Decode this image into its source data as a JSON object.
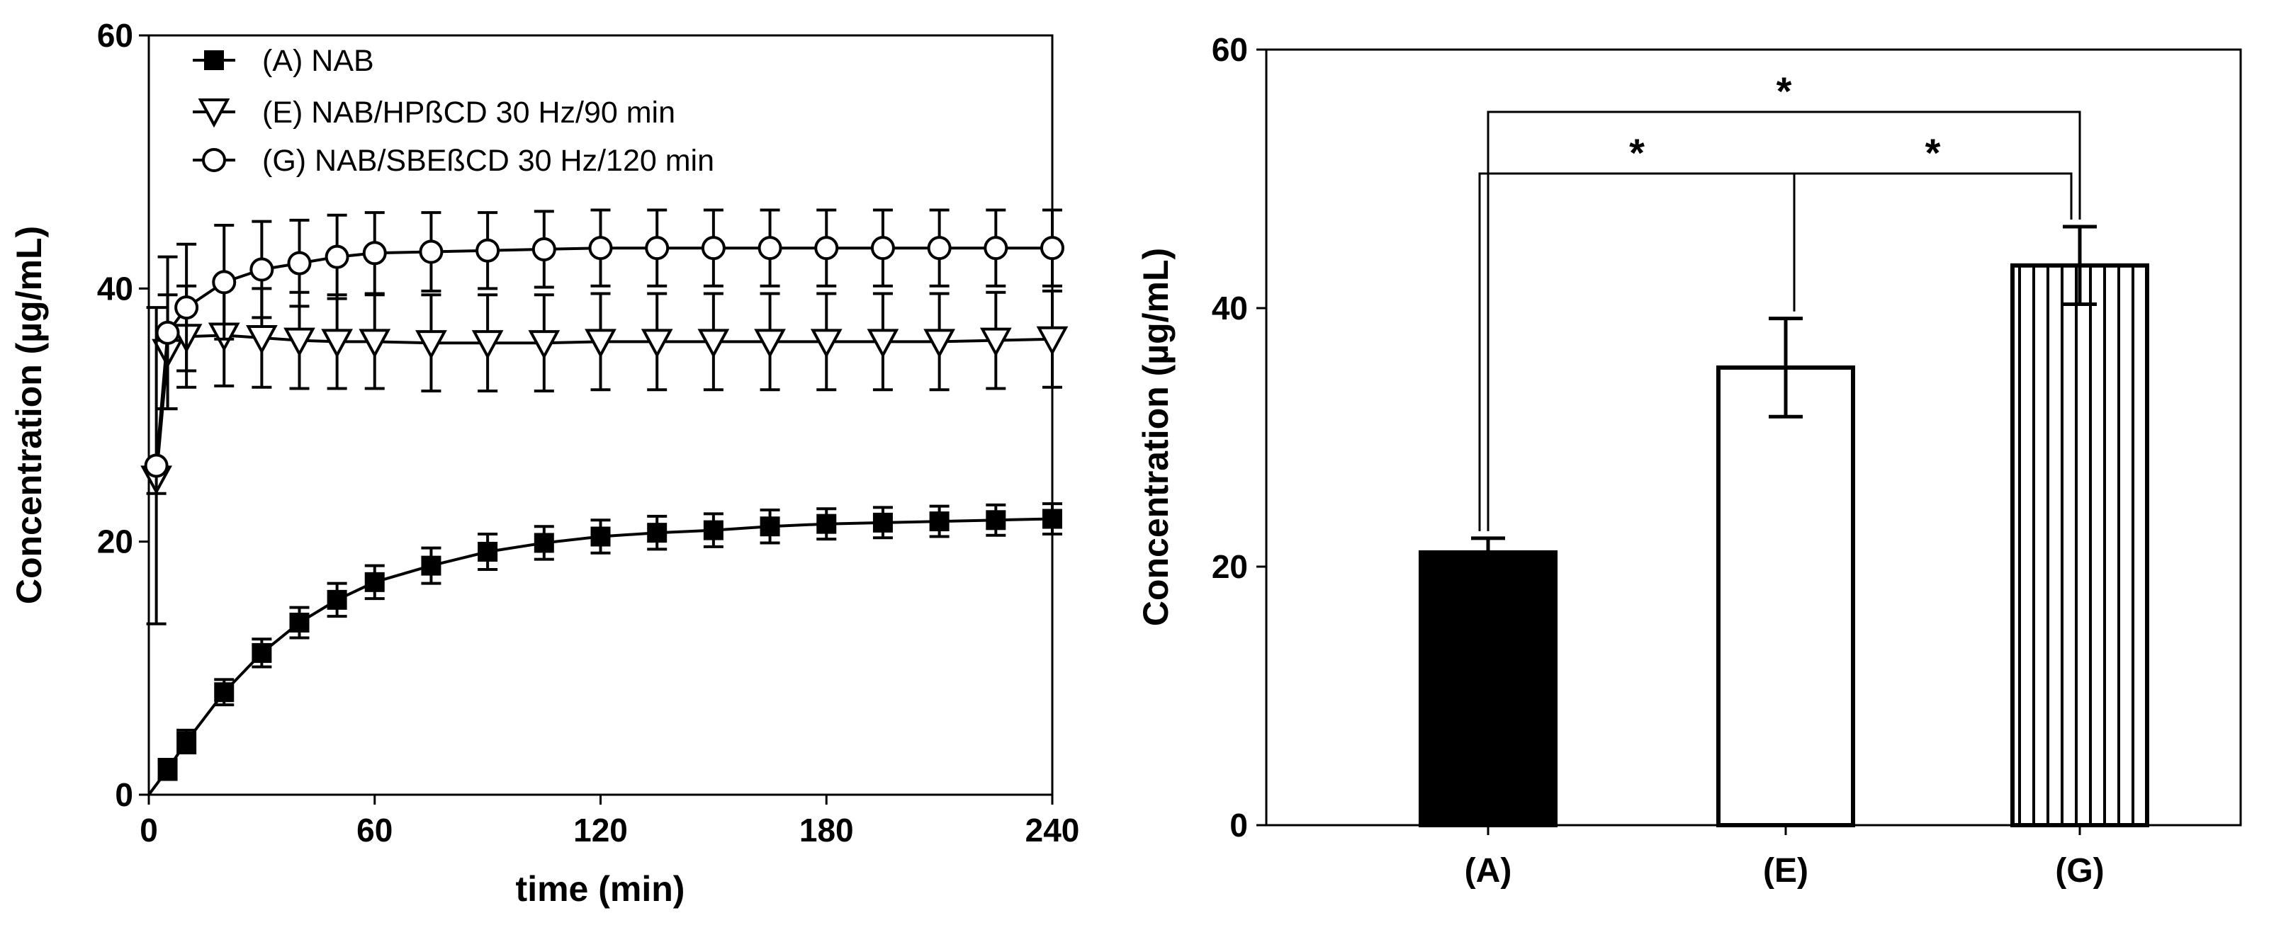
{
  "chart_data": [
    {
      "type": "line",
      "xlabel": "time (min)",
      "ylabel": "Concentration (µg/mL)",
      "xlim": [
        0,
        240
      ],
      "ylim": [
        0,
        60
      ],
      "xticks": [
        0,
        60,
        120,
        180,
        240
      ],
      "yticks": [
        0,
        20,
        40,
        60
      ],
      "legend_position": "top-left",
      "series": [
        {
          "name": "(A) NAB",
          "marker": "filled-square",
          "x": [
            0,
            5,
            10,
            20,
            30,
            40,
            50,
            60,
            75,
            90,
            105,
            120,
            135,
            150,
            165,
            180,
            195,
            210,
            225,
            240
          ],
          "y": [
            0,
            2.0,
            4.2,
            8.1,
            11.2,
            13.6,
            15.4,
            16.8,
            18.1,
            19.2,
            19.9,
            20.4,
            20.7,
            20.9,
            21.2,
            21.4,
            21.5,
            21.6,
            21.7,
            21.8
          ],
          "err": [
            0,
            0.8,
            0.9,
            1.0,
            1.1,
            1.2,
            1.3,
            1.3,
            1.4,
            1.4,
            1.3,
            1.3,
            1.3,
            1.3,
            1.3,
            1.2,
            1.2,
            1.2,
            1.2,
            1.2
          ]
        },
        {
          "name": "(E) NAB/HPßCD 30 Hz/90 min",
          "marker": "open-triangle-down",
          "x": [
            2,
            5,
            10,
            20,
            30,
            40,
            50,
            60,
            75,
            90,
            105,
            120,
            135,
            150,
            165,
            180,
            195,
            210,
            225,
            240
          ],
          "y": [
            25.0,
            35.0,
            36.2,
            36.3,
            36.1,
            35.9,
            35.8,
            35.8,
            35.7,
            35.7,
            35.7,
            35.8,
            35.8,
            35.8,
            35.8,
            35.8,
            35.8,
            35.8,
            35.9,
            36.0
          ],
          "err": [
            1.2,
            4.5,
            4.0,
            4.0,
            3.9,
            3.8,
            3.7,
            3.7,
            3.8,
            3.8,
            3.8,
            3.8,
            3.8,
            3.8,
            3.8,
            3.8,
            3.8,
            3.8,
            3.8,
            3.8
          ]
        },
        {
          "name": "(G) NAB/SBEßCD 30 Hz/120 min",
          "marker": "open-circle",
          "x": [
            2,
            5,
            10,
            20,
            30,
            40,
            50,
            60,
            75,
            90,
            105,
            120,
            135,
            150,
            165,
            180,
            195,
            210,
            225,
            240
          ],
          "y": [
            26.0,
            36.5,
            38.5,
            40.5,
            41.5,
            42.0,
            42.5,
            42.8,
            42.9,
            43.0,
            43.1,
            43.2,
            43.2,
            43.2,
            43.2,
            43.2,
            43.2,
            43.2,
            43.2,
            43.2
          ],
          "err": [
            12.5,
            6.0,
            5.0,
            4.5,
            3.8,
            3.4,
            3.3,
            3.2,
            3.1,
            3.0,
            3.0,
            3.0,
            3.0,
            3.0,
            3.0,
            3.0,
            3.0,
            3.0,
            3.0,
            3.0
          ]
        }
      ]
    },
    {
      "type": "bar",
      "ylabel": "Concentration (µg/mL)",
      "ylim": [
        0,
        60
      ],
      "yticks": [
        0,
        20,
        40,
        60
      ],
      "categories": [
        "(A)",
        "(E)",
        "(G)"
      ],
      "values": [
        21.1,
        35.4,
        43.3
      ],
      "errors": [
        1.1,
        3.8,
        3.0
      ],
      "fills": [
        "solid-black",
        "white",
        "vertical-stripes"
      ],
      "significance": [
        {
          "from": 0,
          "to": 1,
          "label": "*"
        },
        {
          "from": 1,
          "to": 2,
          "label": "*"
        },
        {
          "from": 0,
          "to": 2,
          "label": "*"
        }
      ]
    }
  ]
}
